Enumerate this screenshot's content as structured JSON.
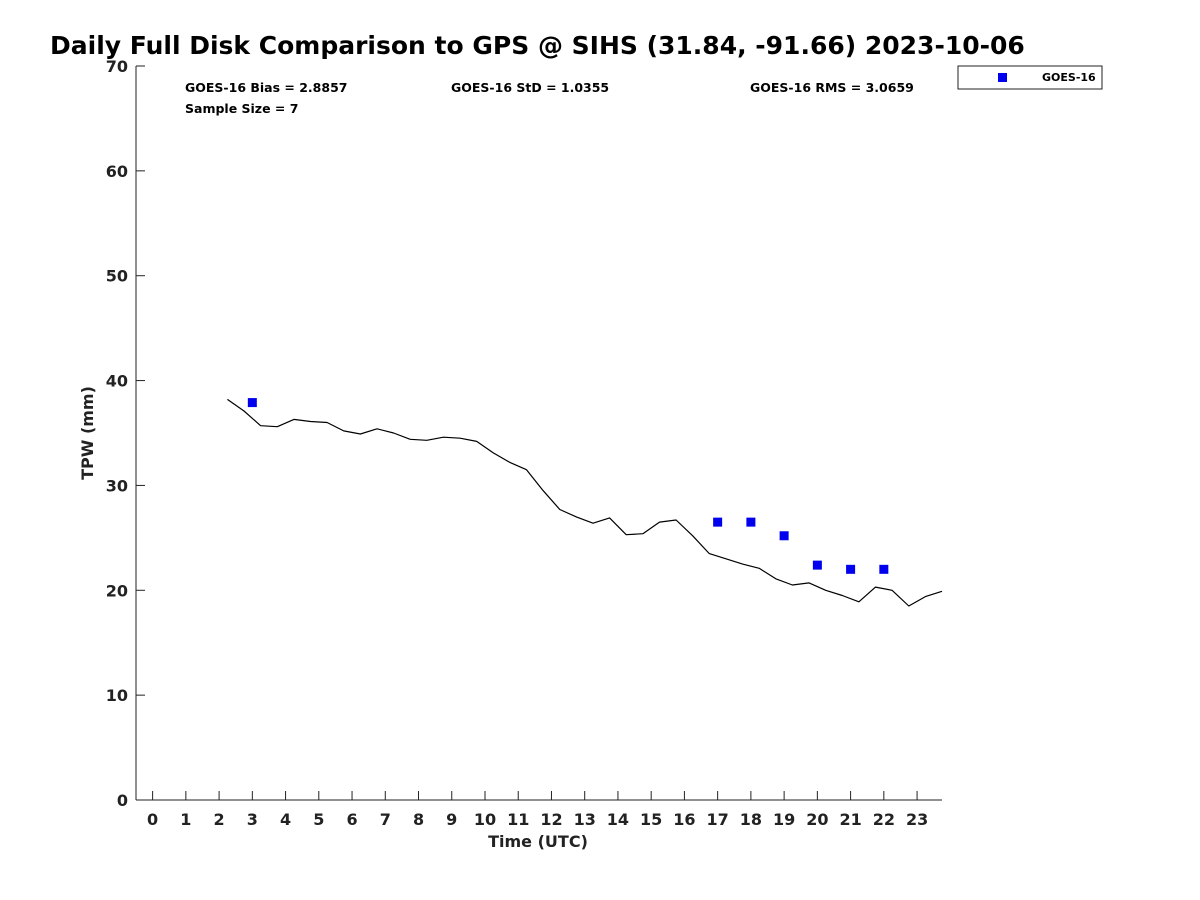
{
  "chart_data": {
    "type": "scatter",
    "title": "Daily Full Disk Comparison to GPS @ SIHS (31.84, -91.66) 2023-10-06",
    "xlabel": "Time (UTC)",
    "ylabel": "TPW (mm)",
    "xlim": [
      -0.5,
      23.75
    ],
    "ylim": [
      0,
      70
    ],
    "xticks": [
      0,
      1,
      2,
      3,
      4,
      5,
      6,
      7,
      8,
      9,
      10,
      11,
      12,
      13,
      14,
      15,
      16,
      17,
      18,
      19,
      20,
      21,
      22,
      23
    ],
    "xtick_labels": [
      "0",
      "1",
      "2",
      "3",
      "4",
      "5",
      "6",
      "7",
      "8",
      "9",
      "10",
      "11",
      "12",
      "13",
      "14",
      "15",
      "16",
      "17",
      "18",
      "19",
      "20",
      "21",
      "22",
      "23"
    ],
    "yticks": [
      0,
      10,
      20,
      30,
      40,
      50,
      60,
      70
    ],
    "ytick_labels": [
      "0",
      "10",
      "20",
      "30",
      "40",
      "50",
      "60",
      "70"
    ],
    "grid": false,
    "legend_position": "top-right",
    "stats": [
      {
        "text": "GOES-16 Bias = 2.8857"
      },
      {
        "text": "GOES-16 StD = 1.0355"
      },
      {
        "text": "GOES-16 RMS = 3.0659"
      },
      {
        "text": "Sample Size = 7"
      }
    ],
    "series": [
      {
        "type": "line",
        "color": "#000000",
        "x": [
          2.25,
          2.75,
          3.25,
          3.75,
          4.25,
          4.75,
          5.25,
          5.75,
          6.25,
          6.75,
          7.25,
          7.75,
          8.25,
          8.75,
          9.25,
          9.75,
          10.25,
          10.75,
          11.25,
          11.75,
          12.25,
          12.75,
          13.25,
          13.75,
          14.25,
          14.75,
          15.25,
          15.75,
          16.25,
          16.75,
          17.25,
          17.75,
          18.25,
          18.75,
          19.25,
          19.75,
          20.25,
          20.75,
          21.25,
          21.75,
          22.25,
          22.75,
          23.25,
          23.75
        ],
        "y": [
          38.2,
          37.1,
          35.7,
          35.6,
          36.3,
          36.1,
          36.0,
          35.2,
          34.9,
          35.4,
          35.0,
          34.4,
          34.3,
          34.6,
          34.5,
          34.2,
          33.1,
          32.2,
          31.5,
          29.5,
          27.7,
          27.0,
          26.4,
          26.9,
          25.3,
          25.4,
          26.5,
          26.7,
          25.2,
          23.5,
          23.0,
          22.5,
          22.1,
          21.1,
          20.5,
          20.7,
          20.0,
          19.5,
          18.9,
          20.3,
          20.0,
          18.5,
          19.4,
          19.9
        ]
      },
      {
        "name": "GOES-16",
        "type": "scatter",
        "marker": "square",
        "color": "#0000ee",
        "x": [
          3,
          17,
          18,
          19,
          20,
          21,
          22
        ],
        "y": [
          37.9,
          26.5,
          26.5,
          25.2,
          22.4,
          22.0,
          22.0
        ]
      }
    ]
  }
}
